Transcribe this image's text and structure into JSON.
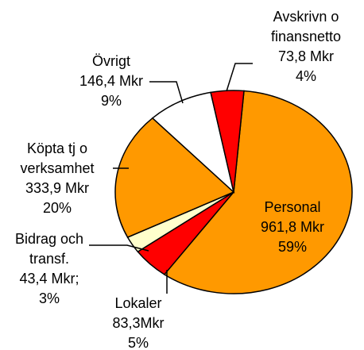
{
  "chart_data": {
    "type": "pie",
    "categories": [
      [
        "Personal"
      ],
      [
        "Lokaler"
      ],
      [
        "Bidrag och",
        "transf."
      ],
      [
        "Köpta tj o",
        "verksamhet"
      ],
      [
        "Övrigt"
      ],
      [
        "Avskrivn o",
        "finansnetto"
      ]
    ],
    "values": [
      961.8,
      83.3,
      43.4,
      333.9,
      146.4,
      73.8
    ],
    "value_labels": [
      "961,8 Mkr",
      "83,3Mkr",
      "43,4 Mkr;",
      "333,9 Mkr",
      "146,4 Mkr",
      "73,8 Mkr"
    ],
    "percentages": [
      59,
      5,
      3,
      20,
      9,
      4
    ],
    "percentage_labels": [
      "59%",
      "5%",
      "3%",
      "20%",
      "9%",
      "4%"
    ],
    "colors": [
      "#FF9900",
      "#FF0000",
      "#FFFFCC",
      "#FF9900",
      "#FFFFFF",
      "#FF0000"
    ]
  }
}
